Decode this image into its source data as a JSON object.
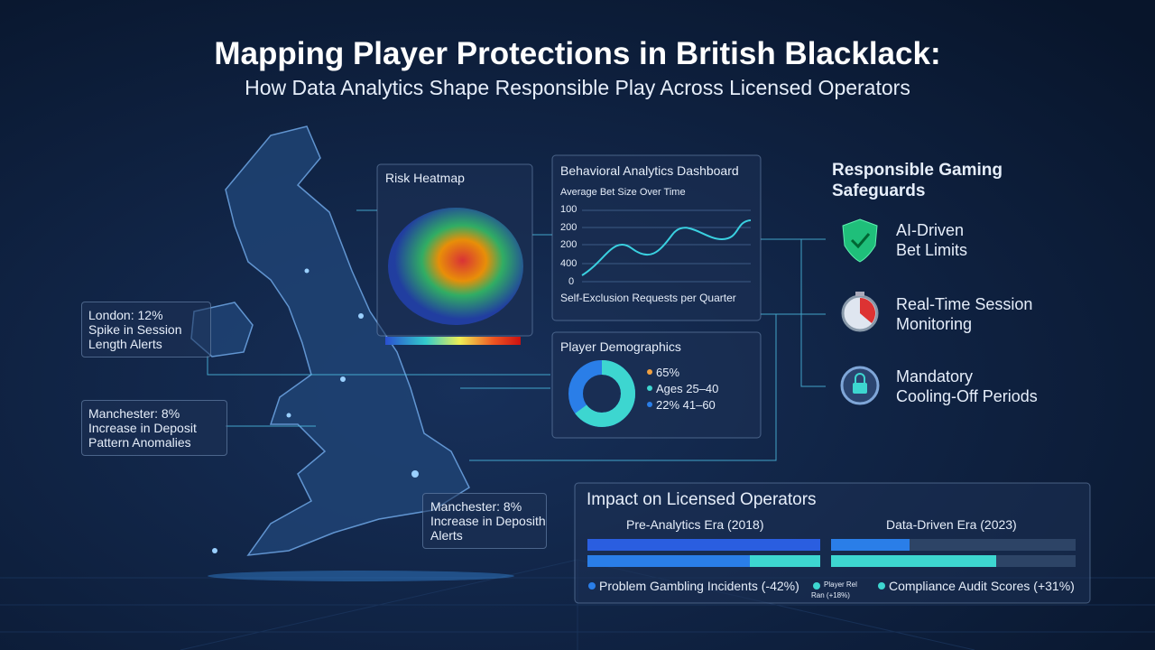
{
  "header": {
    "title": "Mapping Player Protections in British Blacklack:",
    "subtitle": "How Data Analytics Shape Responsible Play Across Licensed Operators"
  },
  "callouts": [
    {
      "lines": [
        "London: 12%",
        "Spike in Session",
        "Length Alerts"
      ]
    },
    {
      "lines": [
        "Manchester: 8%",
        "Increase in Deposit",
        "Pattern Anomalies"
      ]
    },
    {
      "lines": [
        "Manchester: 8%",
        "Increase in Deposith",
        "Alerts"
      ]
    }
  ],
  "heatmap": {
    "title": "Risk Heatmap"
  },
  "dashboard": {
    "title": "Behavioral Analytics Dashboard",
    "subtitle": "Average Bet Size Over Time",
    "axis_labels": [
      "100",
      "200",
      "200",
      "400",
      "0"
    ],
    "footer": "Self-Exclusion Requests per Quarter"
  },
  "demographics": {
    "title": "Player Demographics",
    "legend": [
      "65%",
      "Ages 25–40",
      "22% 41–60"
    ]
  },
  "safeguards": {
    "title": [
      "Responsible Gaming",
      "Safeguards"
    ],
    "items": [
      {
        "lines": [
          "AI-Driven",
          "Bet Limits"
        ]
      },
      {
        "lines": [
          "Real-Time Session",
          "Monitoring"
        ]
      },
      {
        "lines": [
          "Mandatory",
          "Cooling-Off Periods"
        ]
      }
    ]
  },
  "impact": {
    "title": "Impact on Licensed Operators",
    "eras": [
      "Pre-Analytics Era (2018)",
      "Data-Driven Era (2023)"
    ],
    "legend": [
      "Problem Gambling Incidents (-42%)",
      "Player Rel",
      "Ran (+18%)",
      "Compliance Audit Scores (+31%)"
    ]
  }
}
